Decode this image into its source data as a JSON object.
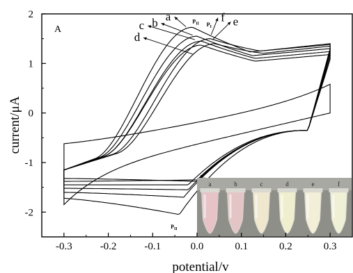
{
  "chart_data": {
    "type": "line",
    "panel_label": "A",
    "xlabel": "potential/v",
    "ylabel": "current/μA",
    "xlim": [
      -0.35,
      0.35
    ],
    "ylim": [
      -2.5,
      2.0
    ],
    "x_ticks": [
      "-0.3",
      "-0.2",
      "-0.1",
      "0.0",
      "0.1",
      "0.2",
      "0.3"
    ],
    "y_ticks": [
      "-2",
      "-1",
      "0",
      "1",
      "2"
    ],
    "grid": false,
    "peak_labels": [
      {
        "text": "P",
        "sub": "II",
        "x": -0.003,
        "y": 1.81
      },
      {
        "text": "P",
        "sub": "I",
        "x": 0.027,
        "y": 1.75
      },
      {
        "text": "P",
        "sub": "I",
        "x": 0.013,
        "y": -1.33
      },
      {
        "text": "P",
        "sub": "II",
        "x": -0.052,
        "y": -2.33
      }
    ],
    "curve_labels": [
      {
        "text": "a",
        "x": -0.065,
        "y": 1.87,
        "target_x": -0.025,
        "target_y": 1.74
      },
      {
        "text": "b",
        "x": -0.095,
        "y": 1.74,
        "target_x": -0.01,
        "target_y": 1.57
      },
      {
        "text": "c",
        "x": -0.125,
        "y": 1.69,
        "target_x": -0.005,
        "target_y": 1.48
      },
      {
        "text": "d",
        "x": -0.135,
        "y": 1.45,
        "target_x": -0.01,
        "target_y": 1.19
      },
      {
        "text": "f",
        "x": 0.058,
        "y": 1.85,
        "target_x": 0.032,
        "target_y": 1.58
      },
      {
        "text": "e",
        "x": 0.087,
        "y": 1.77,
        "target_x": 0.035,
        "target_y": 1.48
      }
    ],
    "series": [
      {
        "name": "a",
        "anodic_peak": [
          -0.01,
          1.73
        ],
        "cathodic_peak": [
          -0.04,
          -2.05
        ],
        "upper_end": 1.28,
        "lower_end": -1.72
      },
      {
        "name": "b",
        "anodic_peak": [
          0.0,
          1.55
        ],
        "cathodic_peak": [
          -0.03,
          -1.7
        ],
        "upper_end": 1.2,
        "lower_end": -1.6
      },
      {
        "name": "c",
        "anodic_peak": [
          0.01,
          1.45
        ],
        "cathodic_peak": [
          -0.02,
          -1.55
        ],
        "upper_end": 1.14,
        "lower_end": -1.52
      },
      {
        "name": "d",
        "anodic_peak": [
          0.01,
          1.37
        ],
        "cathodic_peak": [
          -0.02,
          -1.45
        ],
        "upper_end": 1.08,
        "lower_end": -1.45
      },
      {
        "name": "e",
        "anodic_peak": [
          0.04,
          1.4
        ],
        "cathodic_peak": [
          0.0,
          -1.35
        ],
        "upper_end": 1.25,
        "lower_end": -1.38
      },
      {
        "name": "f",
        "anodic_peak": [
          0.03,
          1.5
        ],
        "cathodic_peak": [
          0.0,
          -1.38
        ],
        "upper_end": 1.3,
        "lower_end": -1.32
      },
      {
        "name": "",
        "anodic_peak": [
          0.3,
          0.95
        ],
        "cathodic_peak": [
          -0.3,
          -1.25
        ],
        "upper_end": 0.95,
        "lower_end": -1.25
      }
    ]
  },
  "inset": {
    "tube_labels": [
      "a",
      "b",
      "c",
      "d",
      "e",
      "f"
    ],
    "tube_colors": [
      "#e7c3c8",
      "#e4c5c6",
      "#f0e7cf",
      "#efefd0",
      "#f3eed7",
      "#eff0d6"
    ],
    "background_color": "#8f8f89"
  }
}
